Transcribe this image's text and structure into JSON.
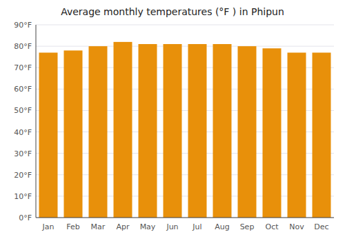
{
  "chart_data": {
    "type": "bar",
    "title": "Average monthly temperatures (°F ) in Phipun",
    "categories": [
      "Jan",
      "Feb",
      "Mar",
      "Apr",
      "May",
      "Jun",
      "Jul",
      "Aug",
      "Sep",
      "Oct",
      "Nov",
      "Dec"
    ],
    "values": [
      77,
      78,
      80,
      82,
      81,
      81,
      81,
      81,
      80,
      79,
      77,
      77
    ],
    "color": "#E8900A",
    "ylim": [
      0,
      90
    ],
    "yticks": [
      {
        "value": 0,
        "label": "0°F"
      },
      {
        "value": 10,
        "label": "10°F"
      },
      {
        "value": 20,
        "label": "20°F"
      },
      {
        "value": 30,
        "label": "30°F"
      },
      {
        "value": 40,
        "label": "40°F"
      },
      {
        "value": 50,
        "label": "50°F"
      },
      {
        "value": 60,
        "label": "60°F"
      },
      {
        "value": 70,
        "label": "70°F"
      },
      {
        "value": 80,
        "label": "80°F"
      },
      {
        "value": 90,
        "label": "90°F"
      }
    ],
    "grid": true
  }
}
